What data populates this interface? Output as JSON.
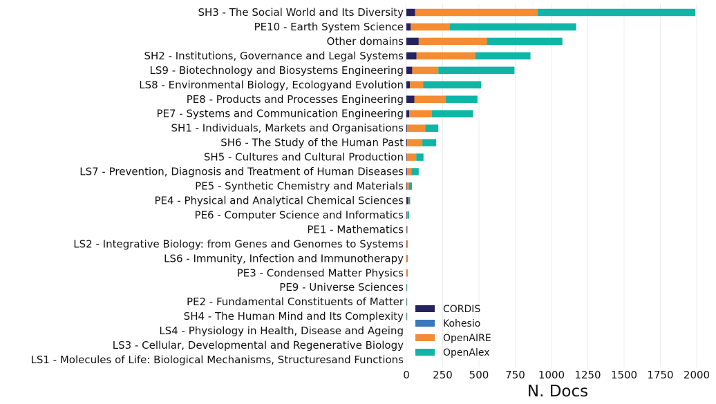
{
  "chart_data": {
    "type": "bar",
    "orientation": "horizontal",
    "stacked": true,
    "title": "",
    "xlabel": "N. Docs",
    "ylabel": "",
    "xlim": [
      0,
      2000
    ],
    "xticks": [
      0,
      250,
      500,
      750,
      1000,
      1250,
      1500,
      1750,
      2000
    ],
    "grid": "vertical",
    "legend_position": "bottom-center",
    "categories": [
      "SH3 - The Social World and Its Diversity",
      "PE10 - Earth System Science",
      "Other domains",
      "SH2 - Institutions, Governance and Legal Systems",
      "LS9 - Biotechnology and Biosystems Engineering",
      "LS8 - Environmental Biology, Ecologyand Evolution",
      "PE8 - Products and Processes Engineering",
      "PE7 - Systems and Communication Engineering",
      "SH1 - Individuals, Markets and Organisations",
      "SH6 - The Study of the Human Past",
      "SH5 - Cultures and Cultural Production",
      "LS7 - Prevention, Diagnosis and Treatment of Human Diseases",
      "PE5 - Synthetic Chemistry and Materials",
      "PE4 - Physical and Analytical Chemical Sciences",
      "PE6 - Computer Science and Informatics",
      "PE1 - Mathematics",
      "LS2 - Integrative Biology: from Genes and Genomes to Systems",
      "LS6 - Immunity, Infection and Immunotherapy",
      "PE3 - Condensed Matter Physics",
      "PE9 - Universe Sciences",
      "PE2 - Fundamental Constituents of Matter",
      "SH4 - The Human Mind and Its Complexity",
      "LS4 - Physiology in Health, Disease and Ageing",
      "LS3 - Cellular, Developmental and Regenerative Biology",
      "LS1 - Molecules of Life: Biological Mechanisms, Structuresand Functions"
    ],
    "series": [
      {
        "name": "CORDIS",
        "color": "#26215f",
        "values": [
          60,
          30,
          85,
          70,
          40,
          25,
          55,
          20,
          5,
          5,
          3,
          5,
          3,
          12,
          3,
          2,
          2,
          1,
          1,
          1,
          1,
          1,
          0,
          0,
          0
        ]
      },
      {
        "name": "Kohesio",
        "color": "#3a78bb",
        "values": [
          0,
          0,
          0,
          0,
          0,
          0,
          0,
          0,
          0,
          0,
          0,
          0,
          0,
          0,
          0,
          0,
          0,
          0,
          0,
          0,
          0,
          0,
          0,
          0,
          0
        ]
      },
      {
        "name": "OpenAIRE",
        "color": "#f48c34",
        "values": [
          845,
          270,
          470,
          405,
          180,
          90,
          215,
          155,
          125,
          105,
          65,
          30,
          15,
          4,
          8,
          2,
          3,
          5,
          4,
          1,
          1,
          1,
          0,
          0,
          0
        ]
      },
      {
        "name": "OpenAlex",
        "color": "#10b5a6",
        "values": [
          1085,
          870,
          520,
          380,
          525,
          400,
          220,
          285,
          90,
          95,
          50,
          50,
          20,
          10,
          8,
          2,
          3,
          1,
          1,
          3,
          2,
          3,
          0,
          0,
          0
        ]
      }
    ]
  }
}
